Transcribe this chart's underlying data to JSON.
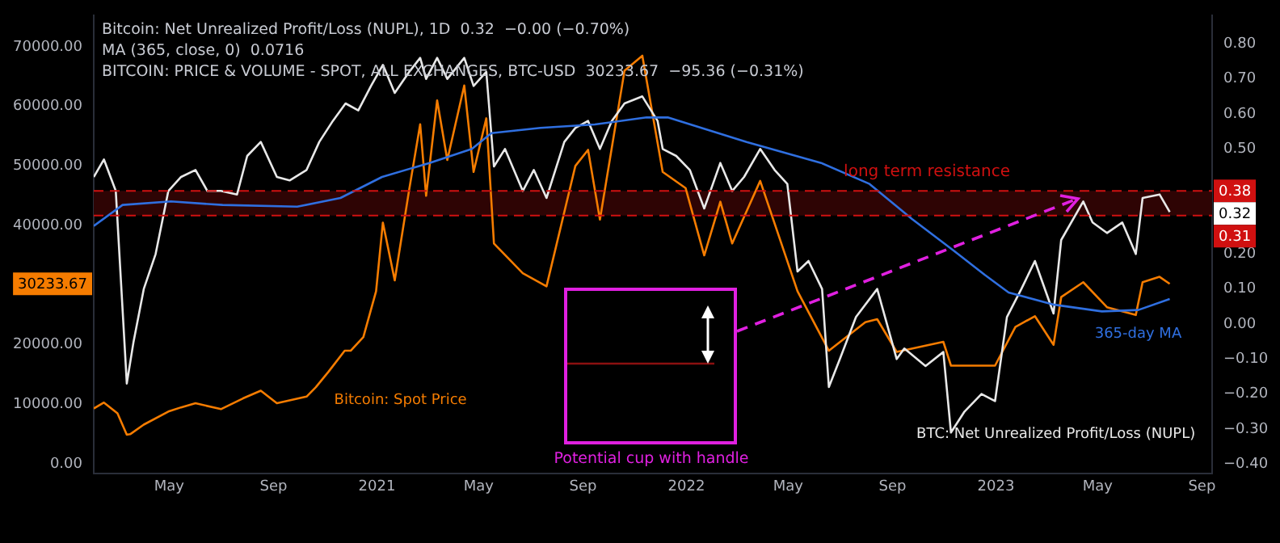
{
  "chart_data": {
    "type": "line",
    "xlim": [
      "2020-02-02",
      "2023-09-13"
    ],
    "xticks": [
      {
        "value": "2020-05-01",
        "label": "May"
      },
      {
        "value": "2020-09-01",
        "label": "Sep"
      },
      "2021",
      {
        "value": "2021-05-01",
        "label": "May"
      },
      {
        "value": "2021-09-01",
        "label": "Sep"
      },
      "2022",
      {
        "value": "2022-05-01",
        "label": "May"
      },
      {
        "value": "2022-09-01",
        "label": "Sep"
      },
      "2023",
      {
        "value": "2023-05-01",
        "label": "May"
      },
      {
        "value": "2023-09-01",
        "label": "Sep"
      }
    ],
    "ylim": [
      -1600,
      75300
    ],
    "yticks": [
      {
        "value": 0,
        "label": "0.00"
      },
      {
        "value": 10000,
        "label": "10000.00"
      },
      {
        "value": 20000,
        "label": "20000.00"
      },
      {
        "value": 40000,
        "label": "40000.00"
      },
      {
        "value": 50000,
        "label": "50000.00"
      },
      {
        "value": 60000,
        "label": "60000.00"
      },
      {
        "value": 70000,
        "label": "70000.00"
      }
    ],
    "y2lim": [
      -0.427,
      0.882
    ],
    "y2ticks": [
      {
        "value": -0.4,
        "label": "−0.40"
      },
      {
        "value": -0.3,
        "label": "−0.30"
      },
      {
        "value": -0.2,
        "label": "−0.20"
      },
      {
        "value": -0.1,
        "label": "−0.10"
      },
      {
        "value": 0,
        "label": "0.00"
      },
      {
        "value": 0.1,
        "label": "0.10"
      },
      {
        "value": 0.2,
        "label": "0.20"
      },
      {
        "value": 0.5,
        "label": "0.50"
      },
      {
        "value": 0.6,
        "label": "0.60"
      },
      {
        "value": 0.7,
        "label": "0.70"
      },
      {
        "value": 0.8,
        "label": "0.80"
      }
    ],
    "grid": false,
    "legend": false,
    "marker": "none",
    "line_style": "solid",
    "series": [
      {
        "name": "Bitcoin: Spot Price",
        "color": "#f57c00",
        "x": [
          "2020-02-02",
          "2020-02-14",
          "2020-03-01",
          "2020-03-12",
          "2020-03-16",
          "2020-04-01",
          "2020-04-30",
          "2020-05-15",
          "2020-06-01",
          "2020-07-01",
          "2020-07-27",
          "2020-08-17",
          "2020-09-05",
          "2020-10-10",
          "2020-10-21",
          "2020-11-05",
          "2020-11-24",
          "2020-12-01",
          "2020-12-16",
          "2020-12-31",
          "2021-01-08",
          "2021-01-22",
          "2021-02-08",
          "2021-02-21",
          "2021-02-28",
          "2021-03-13",
          "2021-03-25",
          "2021-04-14",
          "2021-04-25",
          "2021-05-10",
          "2021-05-19",
          "2021-06-22",
          "2021-07-20",
          "2021-08-23",
          "2021-09-07",
          "2021-09-21",
          "2021-10-20",
          "2021-11-10",
          "2021-12-04",
          "2021-12-31",
          "2022-01-22",
          "2022-02-10",
          "2022-02-24",
          "2022-03-29",
          "2022-05-12",
          "2022-06-18",
          "2022-07-31",
          "2022-08-14",
          "2022-09-06",
          "2022-10-31",
          "2022-11-09",
          "2022-12-31",
          "2023-01-24",
          "2023-02-16",
          "2023-03-10",
          "2023-03-19",
          "2023-04-14",
          "2023-05-12",
          "2023-06-15",
          "2023-06-23",
          "2023-07-13",
          "2023-07-25"
        ],
        "values": [
          9300,
          10300,
          8500,
          4900,
          5000,
          6600,
          8800,
          9500,
          10200,
          9200,
          11000,
          12300,
          10200,
          11300,
          12900,
          15500,
          19000,
          19000,
          21300,
          29000,
          40500,
          30800,
          46000,
          57000,
          45000,
          61000,
          51000,
          63500,
          49000,
          58000,
          37000,
          32000,
          29800,
          50000,
          52700,
          41000,
          66000,
          68500,
          49000,
          46300,
          35000,
          44000,
          37000,
          47500,
          29000,
          19000,
          23800,
          24300,
          18800,
          20500,
          16500,
          16500,
          23000,
          24800,
          20000,
          28000,
          30500,
          26300,
          25000,
          30500,
          31400,
          30233.67
        ]
      },
      {
        "name": "BTC: Net Unrealized Profit/Loss (NUPL)",
        "color": "#e8e8e8",
        "axis": "y2",
        "x": [
          "2020-02-02",
          "2020-02-14",
          "2020-02-28",
          "2020-03-12",
          "2020-03-20",
          "2020-04-01",
          "2020-04-15",
          "2020-04-30",
          "2020-05-15",
          "2020-06-01",
          "2020-06-15",
          "2020-07-01",
          "2020-07-20",
          "2020-08-01",
          "2020-08-17",
          "2020-09-05",
          "2020-09-20",
          "2020-10-10",
          "2020-10-25",
          "2020-11-10",
          "2020-11-25",
          "2020-12-10",
          "2020-12-25",
          "2021-01-08",
          "2021-01-22",
          "2021-02-08",
          "2021-02-21",
          "2021-02-28",
          "2021-03-13",
          "2021-03-25",
          "2021-04-14",
          "2021-04-25",
          "2021-05-10",
          "2021-05-19",
          "2021-06-01",
          "2021-06-22",
          "2021-07-05",
          "2021-07-20",
          "2021-08-10",
          "2021-08-23",
          "2021-09-07",
          "2021-09-21",
          "2021-10-05",
          "2021-10-20",
          "2021-11-10",
          "2021-11-28",
          "2021-12-04",
          "2021-12-20",
          "2022-01-05",
          "2022-01-22",
          "2022-02-10",
          "2022-02-24",
          "2022-03-10",
          "2022-03-29",
          "2022-04-15",
          "2022-04-30",
          "2022-05-12",
          "2022-05-25",
          "2022-06-10",
          "2022-06-18",
          "2022-07-01",
          "2022-07-20",
          "2022-08-14",
          "2022-09-06",
          "2022-09-15",
          "2022-10-10",
          "2022-10-31",
          "2022-11-09",
          "2022-11-25",
          "2022-12-15",
          "2022-12-31",
          "2023-01-14",
          "2023-01-31",
          "2023-02-16",
          "2023-03-10",
          "2023-03-19",
          "2023-04-14",
          "2023-04-25",
          "2023-05-12",
          "2023-05-30",
          "2023-06-15",
          "2023-06-23",
          "2023-07-13",
          "2023-07-25"
        ],
        "values": [
          0.42,
          0.47,
          0.38,
          -0.17,
          -0.05,
          0.1,
          0.2,
          0.38,
          0.42,
          0.44,
          0.38,
          0.38,
          0.37,
          0.48,
          0.52,
          0.42,
          0.41,
          0.44,
          0.52,
          0.58,
          0.63,
          0.61,
          0.68,
          0.74,
          0.66,
          0.72,
          0.76,
          0.7,
          0.76,
          0.7,
          0.76,
          0.68,
          0.72,
          0.45,
          0.5,
          0.38,
          0.44,
          0.36,
          0.52,
          0.56,
          0.58,
          0.5,
          0.58,
          0.63,
          0.65,
          0.58,
          0.5,
          0.48,
          0.44,
          0.33,
          0.46,
          0.38,
          0.42,
          0.5,
          0.44,
          0.4,
          0.15,
          0.18,
          0.1,
          -0.18,
          -0.1,
          0.02,
          0.1,
          -0.1,
          -0.07,
          -0.12,
          -0.08,
          -0.31,
          -0.25,
          -0.2,
          -0.22,
          0.02,
          0.1,
          0.18,
          0.03,
          0.24,
          0.35,
          0.29,
          0.26,
          0.29,
          0.2,
          0.36,
          0.37,
          0.32
        ]
      },
      {
        "name": "365-day MA",
        "color": "#2f6fe0",
        "axis": "y2",
        "x": [
          "2020-02-02",
          "2020-03-07",
          "2020-05-03",
          "2020-07-03",
          "2020-09-29",
          "2020-11-19",
          "2021-01-07",
          "2021-03-04",
          "2021-04-23",
          "2021-05-16",
          "2021-07-13",
          "2021-09-15",
          "2021-11-15",
          "2021-12-10",
          "2022-03-13",
          "2022-06-09",
          "2022-08-05",
          "2022-09-24",
          "2022-11-12",
          "2022-12-19",
          "2023-01-16",
          "2023-03-11",
          "2023-05-06",
          "2023-06-18",
          "2023-07-25"
        ],
        "values": [
          0.28,
          0.34,
          0.35,
          0.34,
          0.335,
          0.36,
          0.42,
          0.46,
          0.5,
          0.545,
          0.56,
          0.57,
          0.59,
          0.59,
          0.52,
          0.46,
          0.4,
          0.3,
          0.21,
          0.14,
          0.09,
          0.055,
          0.036,
          0.04,
          0.0716
        ]
      }
    ],
    "ref_lines": [
      {
        "axis": "y2",
        "value": 0.38,
        "label": "0.38",
        "color": "#d01010",
        "line_style": "dashed"
      },
      {
        "axis": "y2",
        "value": 0.31,
        "label": "0.31",
        "color": "#d01010",
        "line_style": "dashed"
      }
    ],
    "bands": [
      {
        "axis": "y2",
        "from": 0.31,
        "to": 0.38,
        "label": "long term resistance",
        "color": "#2e0404"
      }
    ],
    "annotations": [
      "Bitcoin: Net Unrealized Profit/Loss (NUPL), 1D  0.32  −0.00 (−0.70%)",
      "MA (365, close, 0)  0.0716",
      "BITCOIN: PRICE & VOLUME - SPOT, ALL EXCHANGES, BTC-USD  30233.67  −95.36 (−0.31%)",
      "Potential cup with handle",
      "0.32",
      "30233.67"
    ]
  }
}
